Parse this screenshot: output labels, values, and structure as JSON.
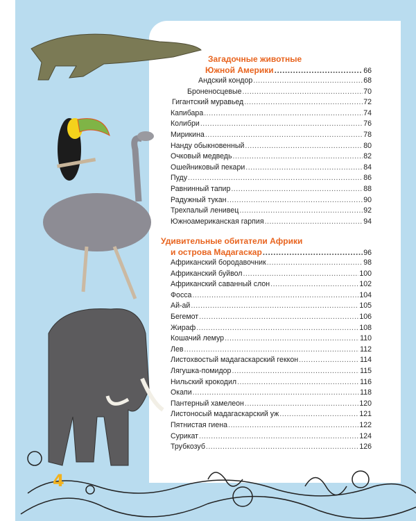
{
  "sections": [
    {
      "title_line1": "Загадочные животные",
      "title_line2": "Южной Америки",
      "page": "66",
      "items": [
        {
          "name": "Андский кондор",
          "page": "68"
        },
        {
          "name": "Броненосцевые",
          "page": "70"
        },
        {
          "name": "Гигантский муравьед",
          "page": "72"
        },
        {
          "name": "Капибара",
          "page": "74"
        },
        {
          "name": "Колибри",
          "page": "76"
        },
        {
          "name": "Мирикина",
          "page": "78"
        },
        {
          "name": "Нанду обыкновенный",
          "page": "80"
        },
        {
          "name": "Очковый медведь",
          "page": "82"
        },
        {
          "name": "Ошейниковый пекари",
          "page": "84"
        },
        {
          "name": "Пуду",
          "page": "86"
        },
        {
          "name": "Равнинный тапир",
          "page": "88"
        },
        {
          "name": "Радужный тукан",
          "page": "90"
        },
        {
          "name": "Трехпалый ленивец",
          "page": "92"
        },
        {
          "name": "Южноамериканская гарпия",
          "page": "94"
        }
      ]
    },
    {
      "title_line1": "Удивительные обитатели Африки",
      "title_line2": "и острова Мадагаскар",
      "page": "96",
      "items": [
        {
          "name": "Африканский бородавочник",
          "page": "98"
        },
        {
          "name": "Африканский буйвол",
          "page": "100"
        },
        {
          "name": "Африканский саванный слон",
          "page": "102"
        },
        {
          "name": "Фосса",
          "page": "104"
        },
        {
          "name": "Ай-ай",
          "page": "105"
        },
        {
          "name": "Бегемот",
          "page": "106"
        },
        {
          "name": "Жираф",
          "page": "108"
        },
        {
          "name": "Кошачий лемур",
          "page": "110"
        },
        {
          "name": "Лев",
          "page": "112"
        },
        {
          "name": "Листохвостый мадагаскарский геккон",
          "page": "114"
        },
        {
          "name": "Лягушка-помидор",
          "page": "115"
        },
        {
          "name": "Нильский крокодил",
          "page": "116"
        },
        {
          "name": "Окапи",
          "page": "118"
        },
        {
          "name": "Пантерный хамелеон",
          "page": "120"
        },
        {
          "name": "Листоносый мадагаскарский уж",
          "page": "121"
        },
        {
          "name": "Пятнистая гиена",
          "page": "122"
        },
        {
          "name": "Сурикат",
          "page": "124"
        },
        {
          "name": "Трубкозуб",
          "page": "126"
        }
      ]
    }
  ],
  "page_number": "4",
  "colors": {
    "background": "#b9dcef",
    "heading": "#e8641f",
    "page_number": "#f2b11c"
  },
  "illustrations": [
    "crocodile",
    "toucan",
    "rhea",
    "elephant",
    "doodle-border"
  ]
}
